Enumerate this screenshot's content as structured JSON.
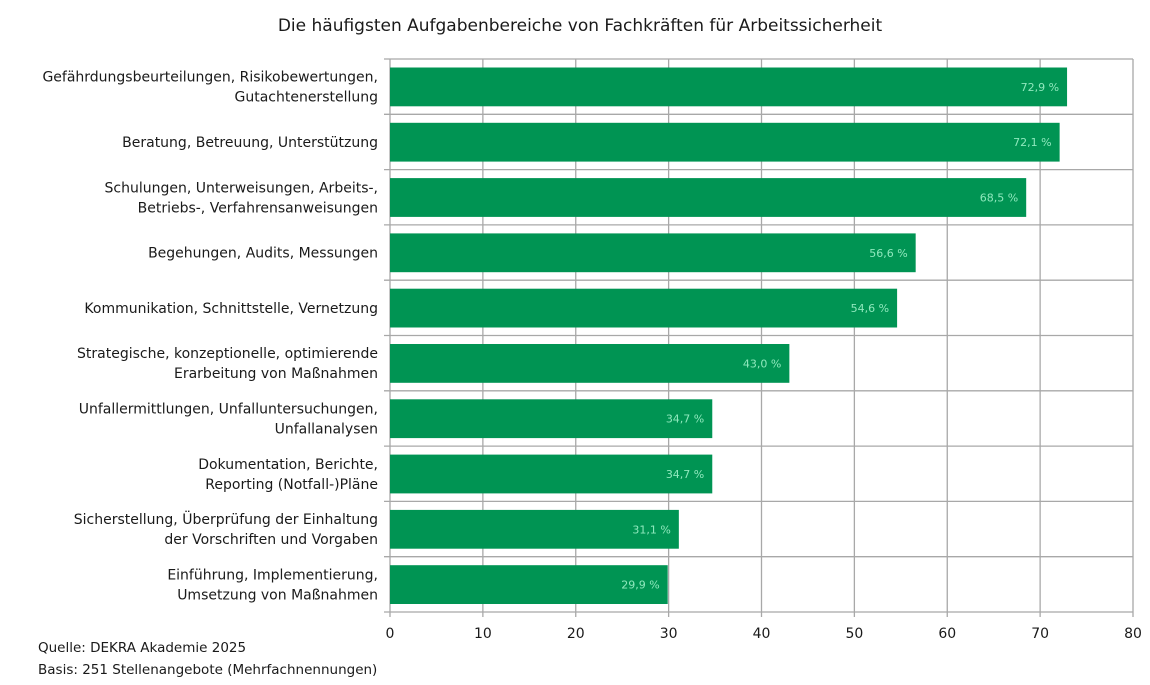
{
  "chart_data": {
    "type": "bar",
    "orientation": "horizontal",
    "title": "Die häufigsten Aufgabenbereiche von Fachkräften für Arbeitssicherheit",
    "categories": [
      [
        "Gefährdungsbeurteilungen, Risikobewertungen,",
        "Gutachtenerstellung"
      ],
      [
        "Beratung, Betreuung, Unterstützung"
      ],
      [
        "Schulungen, Unterweisungen, Arbeits-,",
        "Betriebs-, Verfahrensanweisungen"
      ],
      [
        "Begehungen, Audits, Messungen"
      ],
      [
        "Kommunikation, Schnittstelle, Vernetzung"
      ],
      [
        "Strategische, konzeptionelle, optimierende",
        "Erarbeitung von Maßnahmen"
      ],
      [
        "Unfallermittlungen, Unfalluntersuchungen,",
        "Unfallanalysen"
      ],
      [
        "Dokumentation, Berichte,",
        "Reporting (Notfall-)Pläne"
      ],
      [
        "Sicherstellung, Überprüfung der Einhaltung",
        "der Vorschriften und Vorgaben"
      ],
      [
        "Einführung, Implementierung,",
        "Umsetzung von Maßnahmen"
      ]
    ],
    "values": [
      72.9,
      72.1,
      68.5,
      56.6,
      54.6,
      43.0,
      34.7,
      34.7,
      31.1,
      29.9
    ],
    "value_labels": [
      "72,9 %",
      "72,1 %",
      "68,5 %",
      "56,6 %",
      "54,6 %",
      "43,0 %",
      "34,7 %",
      "34,7 %",
      "31,1 %",
      "29,9 %"
    ],
    "xlim": [
      0,
      80
    ],
    "xticks": [
      "0",
      "10",
      "20",
      "30",
      "40",
      "50",
      "60",
      "70",
      "80"
    ],
    "xlabel": "",
    "ylabel": "",
    "grid": true,
    "bar_color": "#009453",
    "label_color": "#8fe8bd",
    "grid_color": "#a8a8a8"
  },
  "source": {
    "line1": "Quelle: DEKRA Akademie 2025",
    "line2": "Basis: 251 Stellenangebote (Mehrfachnennungen)"
  }
}
